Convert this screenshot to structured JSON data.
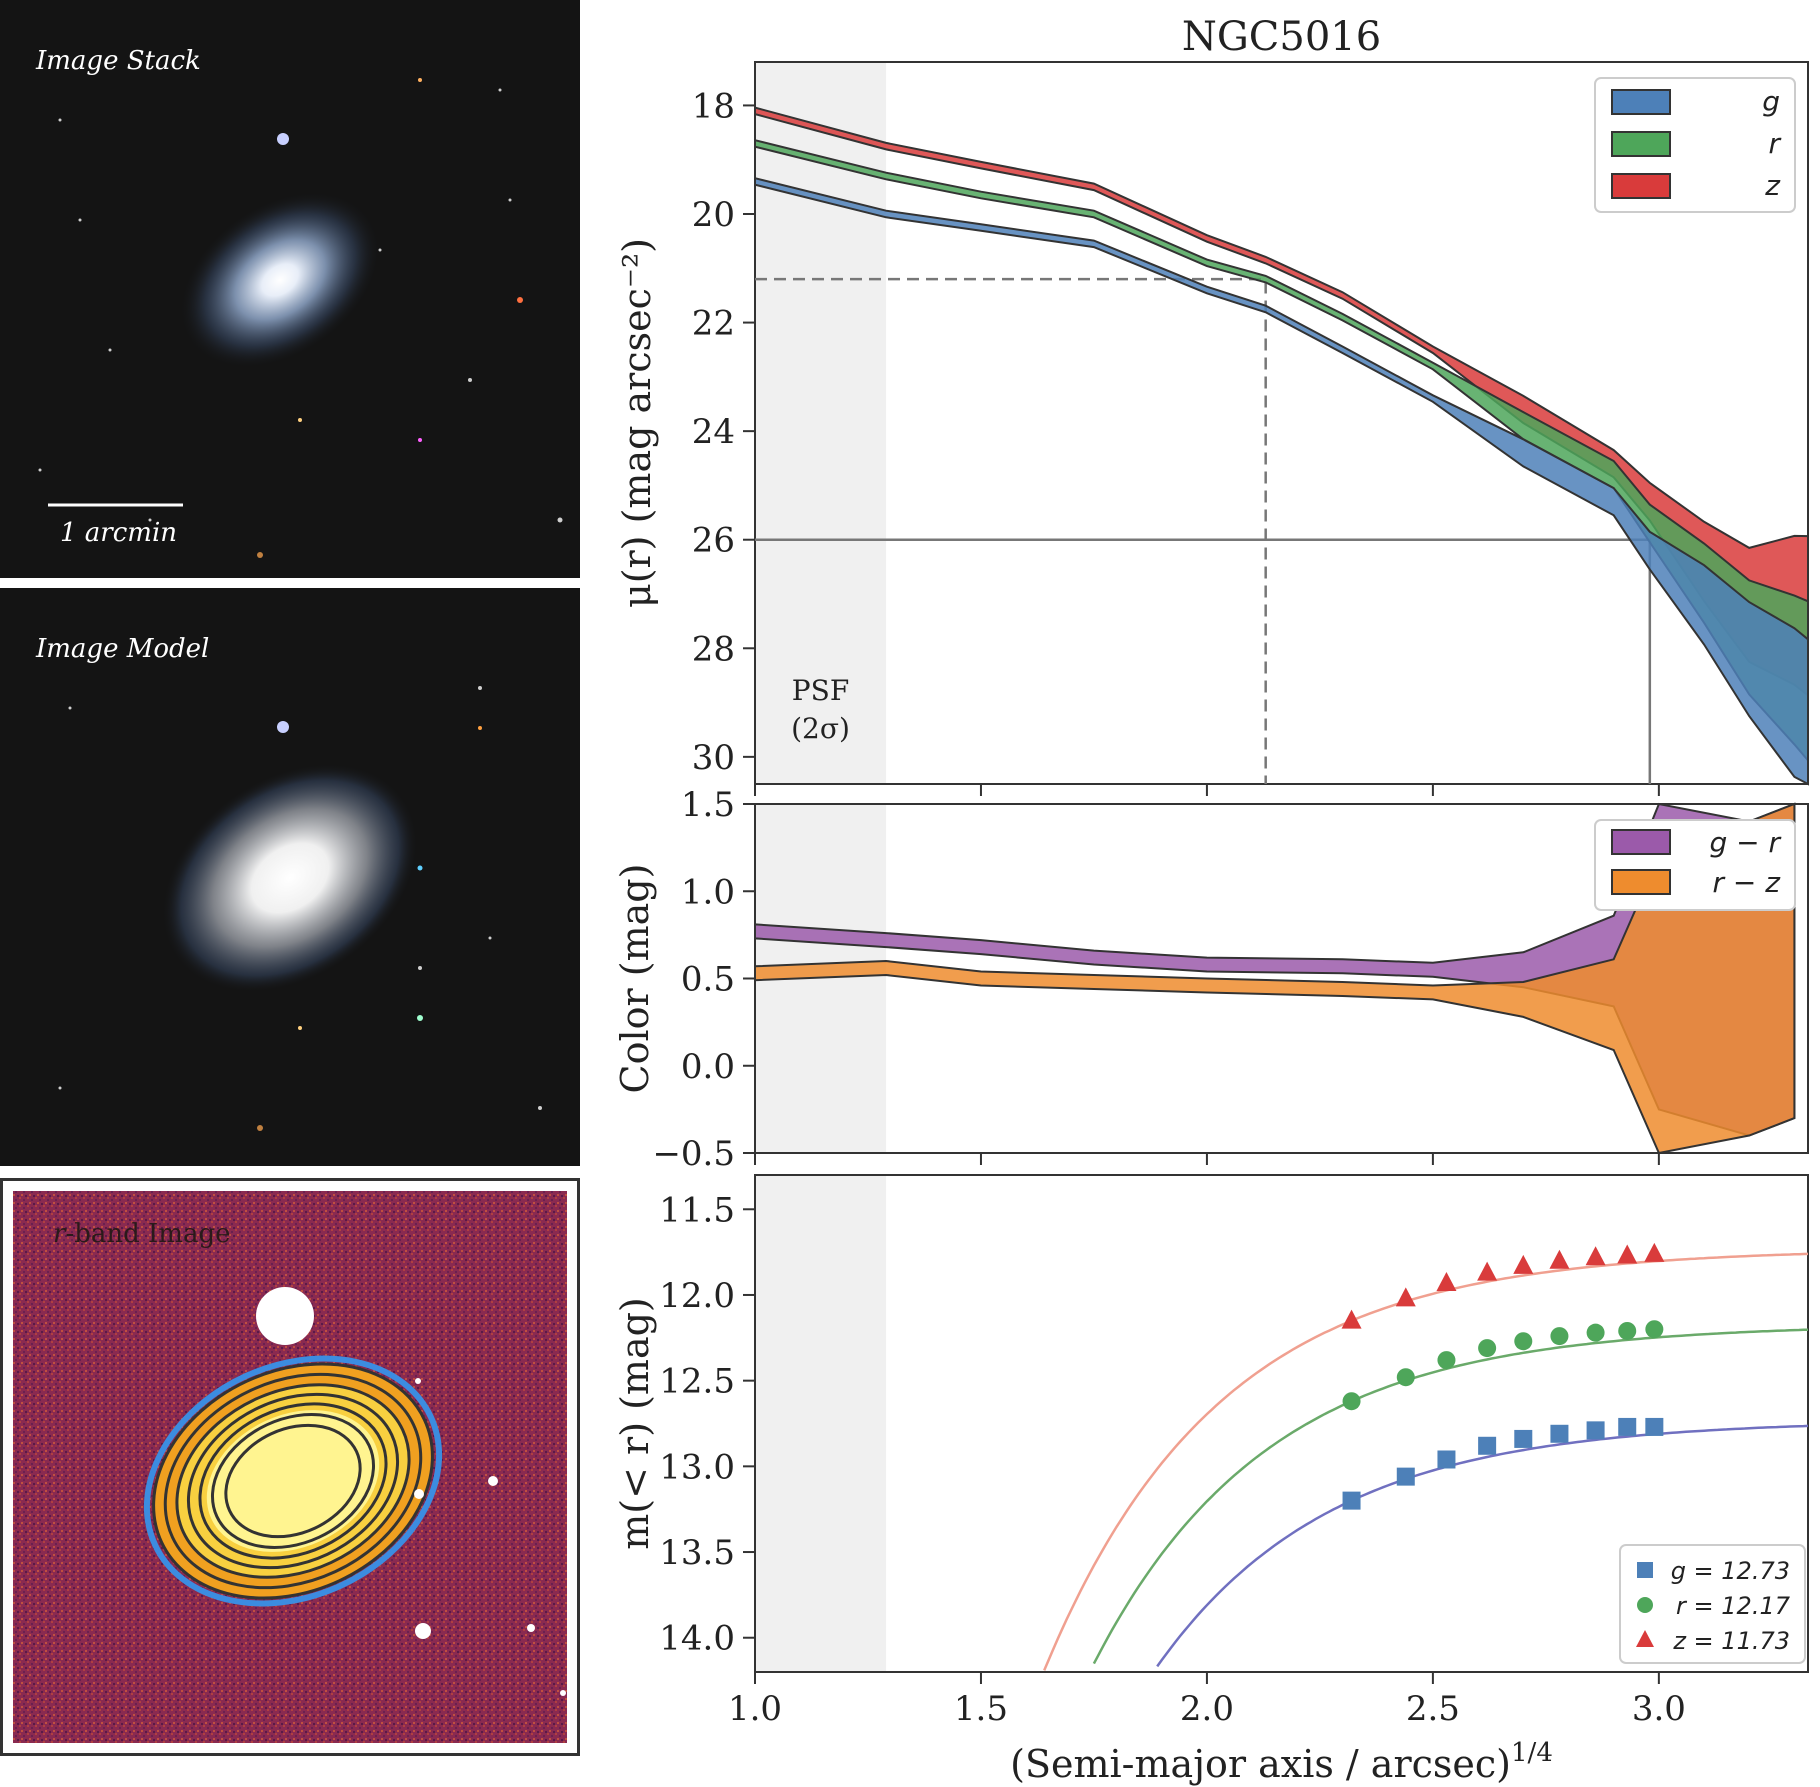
{
  "panels": {
    "stack": {
      "label": "Image Stack",
      "scalebar_label": "1 arcmin"
    },
    "model": {
      "label": "Image Model"
    },
    "rband": {
      "label_italic": "r",
      "label_rest": "-band Image"
    }
  },
  "colors": {
    "g": "#4d80b8",
    "r": "#4ea65a",
    "z": "#d93b3b",
    "gr": "#9b5aaa",
    "rz": "#ee8c2e",
    "psf_band": "#f0f0f0",
    "ref_line": "#777777"
  },
  "chart_data": [
    {
      "type": "area",
      "title": "NGC5016",
      "ylabel": "μ(r) (mag arcsec⁻²)",
      "xlim": [
        1.0,
        3.33
      ],
      "ylim": [
        30.5,
        17.2
      ],
      "yticks": [
        "18",
        "20",
        "22",
        "24",
        "26",
        "28",
        "30"
      ],
      "psf_band": {
        "x_end": 1.29,
        "label_line1": "PSF",
        "label_line2": "(2σ)"
      },
      "ref_lines": {
        "dashed": {
          "x": 2.13,
          "y": 21.2
        },
        "solid": {
          "x": 2.98,
          "y": 26.0
        }
      },
      "legend": [
        "g",
        "r",
        "z"
      ],
      "series": [
        {
          "name": "g",
          "x": [
            1.0,
            1.29,
            1.5,
            1.75,
            2.0,
            2.13,
            2.3,
            2.5,
            2.7,
            2.9,
            2.98,
            3.1,
            3.2,
            3.3,
            3.33
          ],
          "y": [
            19.4,
            20.0,
            20.25,
            20.55,
            21.4,
            21.75,
            22.5,
            23.4,
            24.4,
            25.3,
            26.2,
            27.2,
            28.2,
            29.0,
            29.3
          ]
        },
        {
          "name": "r",
          "x": [
            1.0,
            1.29,
            1.5,
            1.75,
            2.0,
            2.13,
            2.3,
            2.5,
            2.7,
            2.9,
            2.98,
            3.1,
            3.2,
            3.3,
            3.33
          ],
          "y": [
            18.7,
            19.3,
            19.65,
            20.0,
            20.9,
            21.2,
            21.9,
            22.8,
            23.9,
            24.8,
            25.7,
            26.8,
            27.8,
            28.4,
            28.6
          ]
        },
        {
          "name": "z",
          "x": [
            1.0,
            1.29,
            1.5,
            1.75,
            2.0,
            2.13,
            2.3,
            2.5,
            2.7,
            2.9,
            2.98,
            3.1,
            3.2,
            3.3,
            3.33
          ],
          "y": [
            18.1,
            18.75,
            19.1,
            19.5,
            20.45,
            20.85,
            21.5,
            22.5,
            23.6,
            24.6,
            25.3,
            26.4,
            27.2,
            27.3,
            27.4
          ]
        }
      ]
    },
    {
      "type": "area",
      "ylabel": "Color (mag)",
      "xlim": [
        1.0,
        3.33
      ],
      "ylim": [
        -0.5,
        1.5
      ],
      "yticks": [
        "1.5",
        "1.0",
        "0.5",
        "0.0",
        "−0.5"
      ],
      "legend": [
        "g − r",
        "r − z"
      ],
      "series": [
        {
          "name": "g − r",
          "x": [
            1.0,
            1.29,
            1.5,
            1.75,
            2.0,
            2.3,
            2.5,
            2.7,
            2.9,
            3.0,
            3.2,
            3.3
          ],
          "y": [
            0.77,
            0.72,
            0.68,
            0.62,
            0.58,
            0.57,
            0.55,
            0.55,
            0.6,
            0.65,
            0.5,
            0.6
          ]
        },
        {
          "name": "r − z",
          "x": [
            1.0,
            1.29,
            1.5,
            1.75,
            2.0,
            2.3,
            2.5,
            2.7,
            2.9,
            3.0,
            3.2,
            3.3
          ],
          "y": [
            0.53,
            0.56,
            0.5,
            0.48,
            0.46,
            0.44,
            0.42,
            0.38,
            0.35,
            0.3,
            0.5,
            0.6
          ]
        }
      ]
    },
    {
      "type": "scatter",
      "ylabel": "m(< r) (mag)",
      "xlabel": "(Semi-major axis / arcsec)",
      "xlabel_sup": "1/4",
      "xlim": [
        1.0,
        3.33
      ],
      "ylim": [
        14.2,
        11.3
      ],
      "yticks": [
        "11.5",
        "12.0",
        "12.5",
        "13.0",
        "13.5",
        "14.0"
      ],
      "xticks": [
        "1.0",
        "1.5",
        "2.0",
        "2.5",
        "3.0"
      ],
      "legend": [
        "g = 12.73",
        "r = 12.17",
        "z = 11.73"
      ],
      "series": [
        {
          "name": "g",
          "marker": "square",
          "asymptote": 12.73,
          "x": [
            2.32,
            2.44,
            2.53,
            2.62,
            2.7,
            2.78,
            2.86,
            2.93,
            2.99
          ],
          "y": [
            13.2,
            13.06,
            12.96,
            12.88,
            12.84,
            12.81,
            12.79,
            12.77,
            12.77
          ]
        },
        {
          "name": "r",
          "marker": "circle",
          "asymptote": 12.17,
          "x": [
            2.32,
            2.44,
            2.53,
            2.62,
            2.7,
            2.78,
            2.86,
            2.93,
            2.99
          ],
          "y": [
            12.62,
            12.48,
            12.38,
            12.31,
            12.27,
            12.24,
            12.22,
            12.21,
            12.2
          ]
        },
        {
          "name": "z",
          "marker": "triangle",
          "asymptote": 11.73,
          "x": [
            2.32,
            2.44,
            2.53,
            2.62,
            2.7,
            2.78,
            2.86,
            2.93,
            2.99
          ],
          "y": [
            12.15,
            12.02,
            11.93,
            11.87,
            11.83,
            11.8,
            11.78,
            11.77,
            11.76
          ]
        }
      ]
    }
  ]
}
